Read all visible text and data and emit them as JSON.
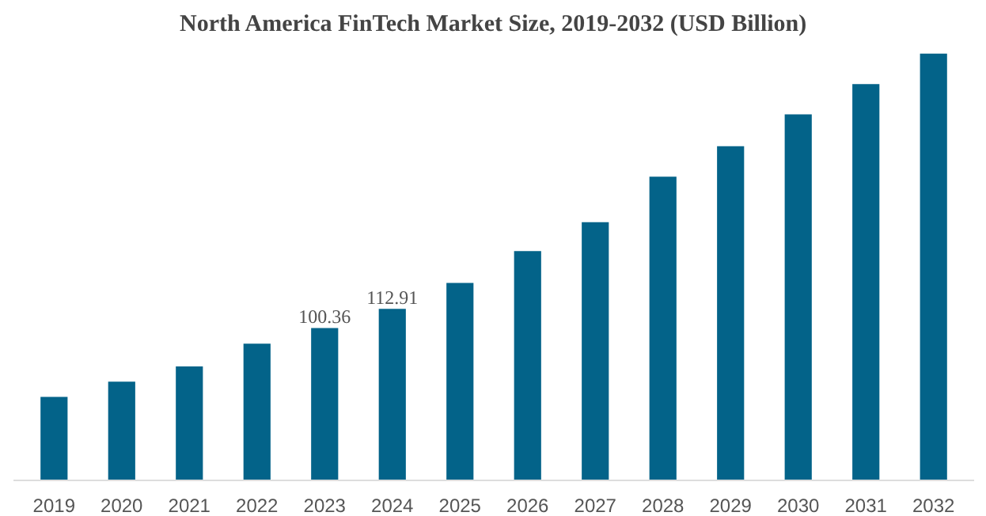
{
  "chart_data": {
    "type": "bar",
    "title": "North America FinTech Market Size, 2019-2032 (USD Billion)",
    "categories": [
      "2019",
      "2020",
      "2021",
      "2022",
      "2023",
      "2024",
      "2025",
      "2026",
      "2027",
      "2028",
      "2029",
      "2030",
      "2031",
      "2032"
    ],
    "values": [
      55,
      65,
      75,
      90,
      100.36,
      112.91,
      130,
      151,
      170,
      200,
      220,
      241,
      261,
      281
    ],
    "value_labels": [
      null,
      null,
      null,
      null,
      "100.36",
      "112.91",
      null,
      null,
      null,
      null,
      null,
      null,
      null,
      null
    ],
    "color": "#036389",
    "grid": false
  }
}
